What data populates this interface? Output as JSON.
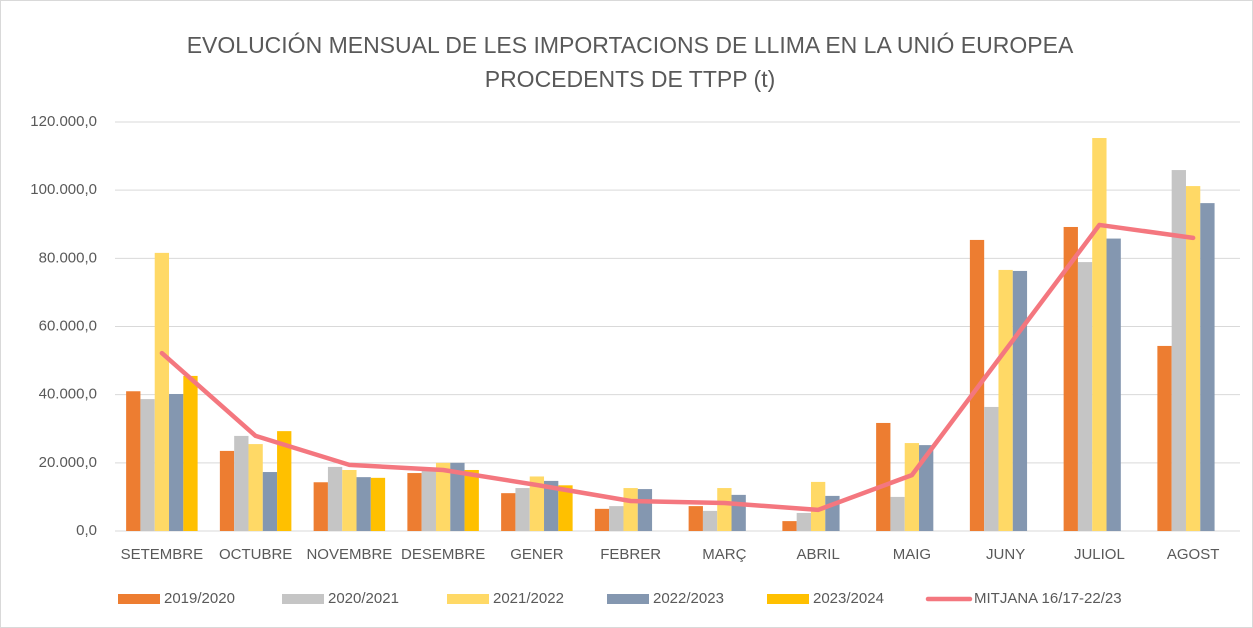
{
  "chart_data": {
    "type": "bar",
    "title": [
      "EVOLUCIÓN MENSUAL DE LES IMPORTACIONS DE LLIMA EN LA UNIÓ EUROPEA",
      "PROCEDENTS DE TTPP (t)"
    ],
    "categories": [
      "SETEMBRE",
      "OCTUBRE",
      "NOVEMBRE",
      "DESEMBRE",
      "GENER",
      "FEBRER",
      "MARÇ",
      "ABRIL",
      "MAIG",
      "JUNY",
      "JULIOL",
      "AGOST"
    ],
    "series": [
      {
        "name": "2019/2020",
        "color": "#ed7d31",
        "type": "bar",
        "values": [
          41000,
          23500,
          14300,
          17000,
          11100,
          6500,
          7300,
          2900,
          31700,
          85400,
          89200,
          54300
        ]
      },
      {
        "name": "2020/2021",
        "color": "#c5c5c5",
        "type": "bar",
        "values": [
          38700,
          27900,
          18800,
          18200,
          12600,
          7300,
          5900,
          5300,
          10000,
          36400,
          78900,
          105900
        ]
      },
      {
        "name": "2021/2022",
        "color": "#ffd966",
        "type": "bar",
        "values": [
          81600,
          25500,
          17900,
          20000,
          16000,
          12600,
          12600,
          14400,
          25800,
          76600,
          115300,
          101200
        ]
      },
      {
        "name": "2022/2023",
        "color": "#8497b0",
        "type": "bar",
        "values": [
          40200,
          17300,
          15800,
          20000,
          14700,
          12300,
          10600,
          10300,
          25200,
          76300,
          85800,
          96200
        ]
      },
      {
        "name": "2023/2024",
        "color": "#ffc000",
        "type": "bar",
        "values": [
          45500,
          29300,
          15600,
          17900,
          13400,
          null,
          null,
          null,
          null,
          null,
          null,
          null
        ]
      },
      {
        "name": "MITJANA 16/17-22/23",
        "color": "#f4777f",
        "type": "line",
        "values": [
          52200,
          27900,
          19400,
          17900,
          13500,
          8800,
          8200,
          6200,
          16400,
          53100,
          89800,
          86000
        ]
      }
    ],
    "ylim": [
      0,
      120000
    ],
    "yticks": [
      {
        "value": 0,
        "label": "0,0"
      },
      {
        "value": 20000,
        "label": "20.000,0"
      },
      {
        "value": 40000,
        "label": "40.000,0"
      },
      {
        "value": 60000,
        "label": "60.000,0"
      },
      {
        "value": 80000,
        "label": "80.000,0"
      },
      {
        "value": 100000,
        "label": "100.000,0"
      },
      {
        "value": 120000,
        "label": "120.000,0"
      }
    ],
    "grid": true,
    "legend": "bottom"
  }
}
